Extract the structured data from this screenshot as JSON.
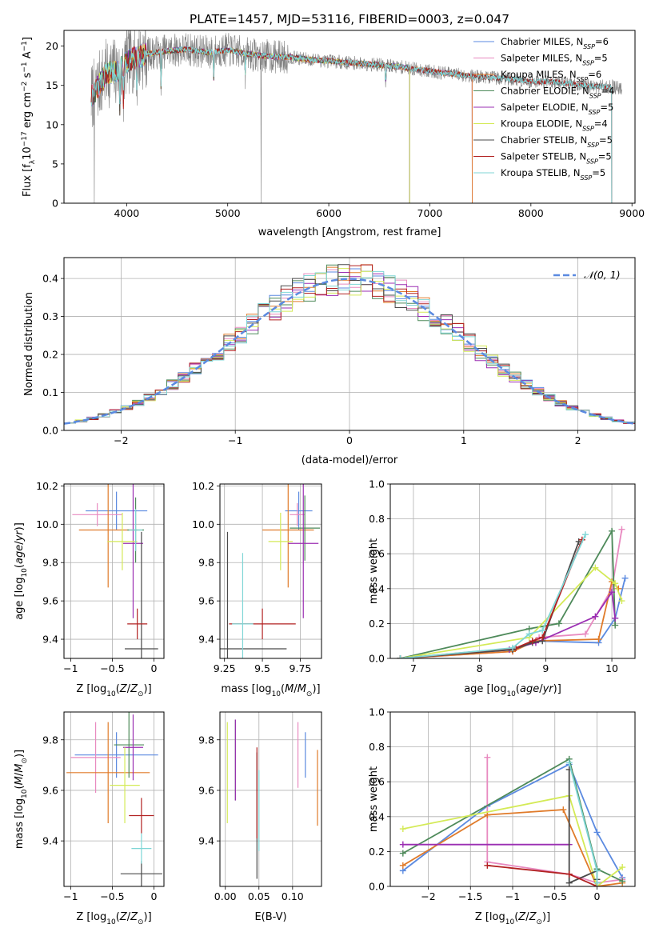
{
  "figure": {
    "title": "PLATE=1457, MJD=53116, FIBERID=0003, z=0.047"
  },
  "models": [
    {
      "name": "Chabrier MILES",
      "n": "6",
      "color": "#5b8ae0"
    },
    {
      "name": "Salpeter MILES",
      "n": "5",
      "color": "#e88ac0"
    },
    {
      "name": "Kroupa MILES",
      "n": "6",
      "color": "#e07b2a"
    },
    {
      "name": "Chabrier ELODIE",
      "n": "4",
      "color": "#4e8a5a"
    },
    {
      "name": "Salpeter ELODIE",
      "n": "5",
      "color": "#9b2fb3"
    },
    {
      "name": "Kroupa ELODIE",
      "n": "4",
      "color": "#d4ea57"
    },
    {
      "name": "Chabrier STELIB",
      "n": "5",
      "color": "#4a4a4a"
    },
    {
      "name": "Salpeter STELIB",
      "n": "5",
      "color": "#b22222"
    },
    {
      "name": "Kroupa STELIB",
      "n": "5",
      "color": "#7fd6d6"
    }
  ],
  "chart_data": [
    {
      "type": "line",
      "id": "spectrum",
      "title": "PLATE=1457, MJD=53116, FIBERID=0003, z=0.047",
      "xlabel": "wavelength [Angstrom, rest frame]",
      "ylabel": "Flux [f_λ 10^-17 erg cm^-2 s^-1 A^-1]",
      "xlim": [
        3380,
        9030
      ],
      "ylim": [
        0,
        22
      ],
      "xticks": [
        4000,
        5000,
        6000,
        7000,
        8000,
        9000
      ],
      "yticks": [
        0,
        5,
        10,
        15,
        20
      ],
      "legend": "top-right",
      "data_series": {
        "name": "data",
        "color": "#808080"
      },
      "continuum": {
        "x": [
          3650,
          3700,
          3800,
          3900,
          4000,
          4100,
          4200,
          4400,
          4600,
          4800,
          5000,
          5200,
          5400,
          5600,
          5800,
          6000,
          6200,
          6400,
          6600,
          6800,
          7000,
          7200,
          7400,
          7600,
          7800,
          8000,
          8200,
          8400,
          8600,
          8800,
          9000
        ],
        "y": [
          13.5,
          14.5,
          16.5,
          16.8,
          18.0,
          18.6,
          19.0,
          19.4,
          19.6,
          19.2,
          19.5,
          19.0,
          18.7,
          18.6,
          18.3,
          18.1,
          17.9,
          17.7,
          17.5,
          17.2,
          16.8,
          16.5,
          16.2,
          16.0,
          15.8,
          15.5,
          15.5,
          15.2,
          14.9,
          14.8,
          14.6
        ]
      },
      "model_ranges": [
        {
          "x_start": 3650,
          "x_end": 7420
        },
        {
          "x_start": 3650,
          "x_end": 7420
        },
        {
          "x_start": 3650,
          "x_end": 7420
        },
        {
          "x_start": 3650,
          "x_end": 6800
        },
        {
          "x_start": 3650,
          "x_end": 6800
        },
        {
          "x_start": 3650,
          "x_end": 6800
        },
        {
          "x_start": 3650,
          "x_end": 8800
        },
        {
          "x_start": 3650,
          "x_end": 8800
        },
        {
          "x_start": 3650,
          "x_end": 8800
        }
      ]
    },
    {
      "type": "bar",
      "id": "residuals",
      "xlabel": "(data-model)/error",
      "ylabel": "Normed distribution",
      "xlim": [
        -2.5,
        2.5
      ],
      "ylim": [
        0,
        0.455
      ],
      "xticks": [
        -2,
        -1,
        0,
        1,
        2
      ],
      "yticks": [
        0.0,
        0.1,
        0.2,
        0.3,
        0.4
      ],
      "grid": true,
      "legend": "top-right",
      "reference": {
        "name": "𝒩(0, 1)",
        "mean": 0,
        "sigma": 1,
        "color": "#5b8ae0"
      }
    },
    {
      "type": "scatter",
      "id": "age-vs-Z",
      "xlabel": "Z [log10(Z/Z⊙)]",
      "ylabel": "age  [log10(age/yr)]",
      "xlim": [
        -1.08,
        0.12
      ],
      "ylim": [
        9.3,
        10.21
      ],
      "xticks": [
        -1.0,
        -0.5,
        0.0
      ],
      "yticks": [
        9.4,
        9.6,
        9.8,
        10.0,
        10.2
      ],
      "grid": true,
      "points": [
        {
          "x": -0.45,
          "y": 10.07,
          "xerr": 0.37,
          "yerr": 0.1
        },
        {
          "x": -0.68,
          "y": 10.05,
          "xerr": 0.3,
          "yerr": 0.06
        },
        {
          "x": -0.55,
          "y": 9.97,
          "xerr": 0.35,
          "yerr": 0.3
        },
        {
          "x": -0.22,
          "y": 9.97,
          "xerr": 0.1,
          "yerr": 0.17
        },
        {
          "x": -0.25,
          "y": 9.9,
          "xerr": 0.12,
          "yerr": 0.39
        },
        {
          "x": -0.38,
          "y": 9.91,
          "xerr": 0.18,
          "yerr": 0.15
        },
        {
          "x": -0.15,
          "y": 9.35,
          "xerr": 0.2,
          "yerr": 0.61
        },
        {
          "x": -0.2,
          "y": 9.48,
          "xerr": 0.12,
          "yerr": 0.08
        },
        {
          "x": -0.22,
          "y": 9.97,
          "xerr": 0.08,
          "yerr": 0.11
        }
      ]
    },
    {
      "type": "scatter",
      "id": "age-vs-mass",
      "xlabel": "mass [log10(M/M⊙)]",
      "ylabel": "",
      "xlim": [
        9.22,
        9.89
      ],
      "ylim": [
        9.3,
        10.21
      ],
      "xticks": [
        9.25,
        9.5,
        9.75
      ],
      "yticks": [
        9.4,
        9.6,
        9.8,
        10.0,
        10.2
      ],
      "grid": true,
      "points": [
        {
          "x": 9.74,
          "y": 10.07,
          "xerr": 0.09,
          "yerr": 0.1
        },
        {
          "x": 9.73,
          "y": 10.05,
          "xerr": 0.05,
          "yerr": 0.06
        },
        {
          "x": 9.67,
          "y": 9.97,
          "xerr": 0.17,
          "yerr": 0.3
        },
        {
          "x": 9.78,
          "y": 9.98,
          "xerr": 0.1,
          "yerr": 0.17
        },
        {
          "x": 9.77,
          "y": 9.9,
          "xerr": 0.1,
          "yerr": 0.39
        },
        {
          "x": 9.62,
          "y": 9.91,
          "xerr": 0.08,
          "yerr": 0.15
        },
        {
          "x": 9.27,
          "y": 9.35,
          "xerr": 0.39,
          "yerr": 0.61
        },
        {
          "x": 9.5,
          "y": 9.48,
          "xerr": 0.22,
          "yerr": 0.08
        },
        {
          "x": 9.37,
          "y": 9.48,
          "xerr": 0.07,
          "yerr": 0.37
        }
      ]
    },
    {
      "type": "line",
      "id": "mass-weight-vs-age",
      "xlabel": "age  [log10(age/yr)]",
      "ylabel": "mass weight",
      "xlim": [
        6.65,
        10.35
      ],
      "ylim": [
        0.0,
        1.0
      ],
      "xticks": [
        7,
        8,
        9,
        10
      ],
      "yticks": [
        0.0,
        0.2,
        0.4,
        0.6,
        0.8,
        1.0
      ],
      "grid": true,
      "series": [
        {
          "x": [
            6.8,
            8.5,
            8.85,
            9.8,
            10.05,
            10.2
          ],
          "y": [
            0.0,
            0.05,
            0.1,
            0.09,
            0.23,
            0.46
          ]
        },
        {
          "x": [
            6.8,
            8.5,
            8.9,
            9.6,
            10.0,
            10.15
          ],
          "y": [
            0.0,
            0.04,
            0.12,
            0.14,
            0.4,
            0.74
          ]
        },
        {
          "x": [
            6.8,
            8.5,
            8.85,
            9.8,
            10.0,
            10.1
          ],
          "y": [
            0.0,
            0.04,
            0.1,
            0.11,
            0.44,
            0.4
          ]
        },
        {
          "x": [
            6.8,
            8.75,
            9.2,
            10.0,
            10.05
          ],
          "y": [
            0.0,
            0.17,
            0.2,
            0.73,
            0.19
          ]
        },
        {
          "x": [
            6.8,
            8.45,
            8.85,
            9.75,
            10.0,
            10.05
          ],
          "y": [
            0.0,
            0.05,
            0.09,
            0.24,
            0.38,
            0.23
          ]
        },
        {
          "x": [
            6.8,
            8.75,
            9.75,
            10.05,
            10.15
          ],
          "y": [
            0.0,
            0.12,
            0.52,
            0.43,
            0.33
          ]
        },
        {
          "x": [
            6.8,
            8.5,
            8.8,
            8.95,
            9.5
          ],
          "y": [
            0.0,
            0.05,
            0.09,
            0.1,
            0.67
          ]
        },
        {
          "x": [
            6.8,
            8.55,
            8.8,
            8.95,
            9.55
          ],
          "y": [
            0.0,
            0.06,
            0.1,
            0.12,
            0.68
          ]
        },
        {
          "x": [
            6.8,
            8.5,
            8.75,
            8.95,
            9.6
          ],
          "y": [
            0.0,
            0.06,
            0.14,
            0.16,
            0.71
          ]
        }
      ]
    },
    {
      "type": "scatter",
      "id": "mass-vs-Z",
      "xlabel": "Z [log10(Z/Z⊙)]",
      "ylabel": "mass [log10(M/M⊙)]",
      "xlim": [
        -1.08,
        0.12
      ],
      "ylim": [
        9.22,
        9.91
      ],
      "xticks": [
        -1.0,
        -0.5,
        0.0
      ],
      "yticks": [
        9.4,
        9.6,
        9.8
      ],
      "grid": true,
      "points": [
        {
          "x": -0.45,
          "y": 9.74,
          "xerr": 0.5,
          "yerr": 0.09
        },
        {
          "x": -0.7,
          "y": 9.73,
          "xerr": 0.3,
          "yerr": 0.14
        },
        {
          "x": -0.55,
          "y": 9.67,
          "xerr": 0.5,
          "yerr": 0.2
        },
        {
          "x": -0.3,
          "y": 9.78,
          "xerr": 0.18,
          "yerr": 0.13
        },
        {
          "x": -0.25,
          "y": 9.77,
          "xerr": 0.12,
          "yerr": 0.13
        },
        {
          "x": -0.35,
          "y": 9.62,
          "xerr": 0.18,
          "yerr": 0.15
        },
        {
          "x": -0.15,
          "y": 9.27,
          "xerr": 0.25,
          "yerr": 0.05
        },
        {
          "x": -0.15,
          "y": 9.5,
          "xerr": 0.15,
          "yerr": 0.07
        },
        {
          "x": -0.15,
          "y": 9.37,
          "xerr": 0.12,
          "yerr": 0.06
        }
      ]
    },
    {
      "type": "scatter",
      "id": "mass-vs-EBV",
      "xlabel": "E(B-V)",
      "ylabel": "",
      "xlim": [
        -0.008,
        0.143
      ],
      "ylim": [
        9.22,
        9.91
      ],
      "xticks": [
        0.0,
        0.05,
        0.1
      ],
      "xtick_labels": [
        "0.00",
        "0.05",
        "0.10"
      ],
      "yticks": [
        9.4,
        9.6,
        9.8
      ],
      "grid": true,
      "points": [
        {
          "x": 0.119,
          "y": 9.74,
          "yerr": 0.09
        },
        {
          "x": 0.108,
          "y": 9.74,
          "yerr": 0.13
        },
        {
          "x": 0.137,
          "y": 9.61,
          "yerr": 0.15
        },
        {
          "x": 0.015,
          "y": 9.72,
          "yerr": 0.16
        },
        {
          "x": 0.015,
          "y": 9.72,
          "yerr": 0.16
        },
        {
          "x": 0.003,
          "y": 9.67,
          "yerr": 0.2
        },
        {
          "x": 0.047,
          "y": 9.5,
          "yerr": 0.25
        },
        {
          "x": 0.047,
          "y": 9.59,
          "yerr": 0.18
        },
        {
          "x": 0.05,
          "y": 9.52,
          "yerr": 0.16
        }
      ]
    },
    {
      "type": "line",
      "id": "mass-weight-vs-Z",
      "xlabel": "Z [log10(Z/Z⊙)]",
      "ylabel": "mass weight",
      "xlim": [
        -2.45,
        0.45
      ],
      "ylim": [
        0.0,
        1.0
      ],
      "xticks": [
        -2.0,
        -1.5,
        -1.0,
        -0.5,
        0.0
      ],
      "yticks": [
        0.0,
        0.2,
        0.4,
        0.6,
        0.8,
        1.0
      ],
      "grid": true,
      "series": [
        {
          "x": [
            -2.3,
            -1.3,
            -0.33,
            0.0,
            0.3
          ],
          "y": [
            0.09,
            0.46,
            0.7,
            0.31,
            0.05
          ]
        },
        {
          "x": [
            -1.3,
            -1.3,
            -0.33,
            0.0,
            0.3
          ],
          "y": [
            0.74,
            0.14,
            0.07,
            0.02,
            0.04
          ]
        },
        {
          "x": [
            -2.3,
            -1.3,
            -0.4,
            0.0,
            0.3
          ],
          "y": [
            0.12,
            0.41,
            0.44,
            0.0,
            0.02
          ]
        },
        {
          "x": [
            -2.3,
            -0.33,
            0.0,
            0.3
          ],
          "y": [
            0.19,
            0.73,
            0.1,
            0.03
          ]
        },
        {
          "x": [
            -2.3,
            -0.33
          ],
          "y": [
            0.24,
            0.24
          ]
        },
        {
          "x": [
            -2.3,
            -0.33,
            0.0,
            0.3
          ],
          "y": [
            0.33,
            0.52,
            0.0,
            0.11
          ]
        },
        {
          "x": [
            -0.33,
            -0.33,
            0.0,
            0.0
          ],
          "y": [
            0.67,
            0.02,
            0.09,
            0.04
          ]
        },
        {
          "x": [
            -1.3,
            -0.33,
            0.0
          ],
          "y": [
            0.12,
            0.07,
            0.0
          ]
        },
        {
          "x": [
            -0.33,
            0.0,
            0.0
          ],
          "y": [
            0.71,
            0.09,
            0.02
          ]
        }
      ]
    }
  ]
}
